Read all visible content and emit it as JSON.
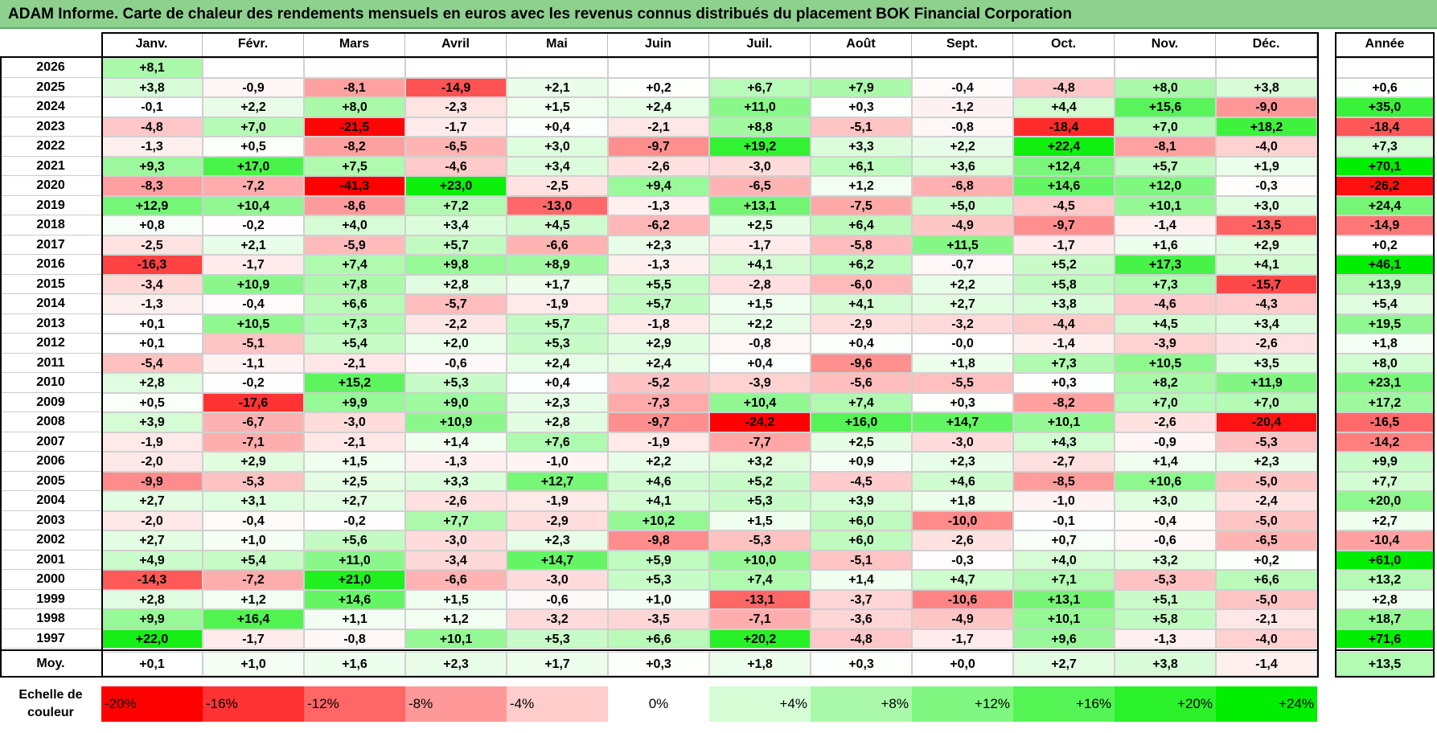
{
  "title": "ADAM Informe. Carte de chaleur des rendements mensuels en euros avec les revenus connus distribués du placement BOK Financial Corporation",
  "colors": {
    "title_bg": "#8ed08e",
    "neg_max": "#ff0000",
    "pos_max": "#00ee00",
    "neutral": "#ffffff"
  },
  "chart_data": {
    "type": "heatmap",
    "months": [
      "Janv.",
      "Févr.",
      "Mars",
      "Avril",
      "Mai",
      "Juin",
      "Juil.",
      "Août",
      "Sept.",
      "Oct.",
      "Nov.",
      "Déc."
    ],
    "year_header": "Année",
    "avg_label": "Moy.",
    "rows": [
      {
        "year": "2026",
        "months": [
          "+8,1",
          "",
          "",
          "",
          "",
          "",
          "",
          "",
          "",
          "",
          "",
          ""
        ],
        "annual": ""
      },
      {
        "year": "2025",
        "months": [
          "+3,8",
          "-0,9",
          "-8,1",
          "-14,9",
          "+2,1",
          "+0,2",
          "+6,7",
          "+7,9",
          "-0,4",
          "-4,8",
          "+8,0",
          "+3,8"
        ],
        "annual": "+0,6"
      },
      {
        "year": "2024",
        "months": [
          "-0,1",
          "+2,2",
          "+8,0",
          "-2,3",
          "+1,5",
          "+2,4",
          "+11,0",
          "+0,3",
          "-1,2",
          "+4,4",
          "+15,6",
          "-9,0"
        ],
        "annual": "+35,0"
      },
      {
        "year": "2023",
        "months": [
          "-4,8",
          "+7,0",
          "-21,5",
          "-1,7",
          "+0,4",
          "-2,1",
          "+8,8",
          "-5,1",
          "-0,8",
          "-18,4",
          "+7,0",
          "+18,2"
        ],
        "annual": "-18,4"
      },
      {
        "year": "2022",
        "months": [
          "-1,3",
          "+0,5",
          "-8,2",
          "-6,5",
          "+3,0",
          "-9,7",
          "+19,2",
          "+3,3",
          "+2,2",
          "+22,4",
          "-8,1",
          "-4,0"
        ],
        "annual": "+7,3"
      },
      {
        "year": "2021",
        "months": [
          "+9,3",
          "+17,0",
          "+7,5",
          "-4,6",
          "+3,4",
          "-2,6",
          "-3,0",
          "+6,1",
          "+3,6",
          "+12,4",
          "+5,7",
          "+1,9"
        ],
        "annual": "+70,1"
      },
      {
        "year": "2020",
        "months": [
          "-8,3",
          "-7,2",
          "-41,3",
          "+23,0",
          "-2,5",
          "+9,4",
          "-6,5",
          "+1,2",
          "-6,8",
          "+14,6",
          "+12,0",
          "-0,3"
        ],
        "annual": "-26,2"
      },
      {
        "year": "2019",
        "months": [
          "+12,9",
          "+10,4",
          "-8,6",
          "+7,2",
          "-13,0",
          "-1,3",
          "+13,1",
          "-7,5",
          "+5,0",
          "-4,5",
          "+10,1",
          "+3,0"
        ],
        "annual": "+24,4"
      },
      {
        "year": "2018",
        "months": [
          "+0,8",
          "-0,2",
          "+4,0",
          "+3,4",
          "+4,5",
          "-6,2",
          "+2,5",
          "+6,4",
          "-4,9",
          "-9,7",
          "-1,4",
          "-13,5"
        ],
        "annual": "-14,9"
      },
      {
        "year": "2017",
        "months": [
          "-2,5",
          "+2,1",
          "-5,9",
          "+5,7",
          "-6,6",
          "+2,3",
          "-1,7",
          "-5,8",
          "+11,5",
          "-1,7",
          "+1,6",
          "+2,9"
        ],
        "annual": "+0,2"
      },
      {
        "year": "2016",
        "months": [
          "-16,3",
          "-1,7",
          "+7,4",
          "+9,8",
          "+8,9",
          "-1,3",
          "+4,1",
          "+6,2",
          "-0,7",
          "+5,2",
          "+17,3",
          "+4,1"
        ],
        "annual": "+46,1"
      },
      {
        "year": "2015",
        "months": [
          "-3,4",
          "+10,9",
          "+7,8",
          "+2,8",
          "+1,7",
          "+5,5",
          "-2,8",
          "-6,0",
          "+2,2",
          "+5,8",
          "+7,3",
          "-15,7"
        ],
        "annual": "+13,9"
      },
      {
        "year": "2014",
        "months": [
          "-1,3",
          "-0,4",
          "+6,6",
          "-5,7",
          "-1,9",
          "+5,7",
          "+1,5",
          "+4,1",
          "+2,7",
          "+3,8",
          "-4,6",
          "-4,3"
        ],
        "annual": "+5,4"
      },
      {
        "year": "2013",
        "months": [
          "+0,1",
          "+10,5",
          "+7,3",
          "-2,2",
          "+5,7",
          "-1,8",
          "+2,2",
          "-2,9",
          "-3,2",
          "-4,4",
          "+4,5",
          "+3,4"
        ],
        "annual": "+19,5"
      },
      {
        "year": "2012",
        "months": [
          "+0,1",
          "-5,1",
          "+5,4",
          "+2,0",
          "+5,3",
          "+2,9",
          "-0,8",
          "+0,4",
          "-0,0",
          "-1,4",
          "-3,9",
          "-2,6"
        ],
        "annual": "+1,8"
      },
      {
        "year": "2011",
        "months": [
          "-5,4",
          "-1,1",
          "-2,1",
          "-0,6",
          "+2,4",
          "+2,4",
          "+0,4",
          "-9,6",
          "+1,8",
          "+7,3",
          "+10,5",
          "+3,5"
        ],
        "annual": "+8,0"
      },
      {
        "year": "2010",
        "months": [
          "+2,8",
          "-0,2",
          "+15,2",
          "+5,3",
          "+0,4",
          "-5,2",
          "-3,9",
          "-5,6",
          "-5,5",
          "+0,3",
          "+8,2",
          "+11,9"
        ],
        "annual": "+23,1"
      },
      {
        "year": "2009",
        "months": [
          "+0,5",
          "-17,6",
          "+9,9",
          "+9,0",
          "+2,3",
          "-7,3",
          "+10,4",
          "+7,4",
          "+0,3",
          "-8,2",
          "+7,0",
          "+7,0"
        ],
        "annual": "+17,2"
      },
      {
        "year": "2008",
        "months": [
          "+3,9",
          "-6,7",
          "-3,0",
          "+10,9",
          "+2,8",
          "-9,7",
          "-24,2",
          "+16,0",
          "+14,7",
          "+10,1",
          "-2,6",
          "-20,4"
        ],
        "annual": "-16,5"
      },
      {
        "year": "2007",
        "months": [
          "-1,9",
          "-7,1",
          "-2,1",
          "+1,4",
          "+7,6",
          "-1,9",
          "-7,7",
          "+2,5",
          "-3,0",
          "+4,3",
          "-0,9",
          "-5,3"
        ],
        "annual": "-14,2"
      },
      {
        "year": "2006",
        "months": [
          "-2,0",
          "+2,9",
          "+1,5",
          "-1,3",
          "-1,0",
          "+2,2",
          "+3,2",
          "+0,9",
          "+2,3",
          "-2,7",
          "+1,4",
          "+2,3"
        ],
        "annual": "+9,9"
      },
      {
        "year": "2005",
        "months": [
          "-9,9",
          "-5,3",
          "+2,5",
          "+3,3",
          "+12,7",
          "+4,6",
          "+5,2",
          "-4,5",
          "+4,6",
          "-8,5",
          "+10,6",
          "-5,0"
        ],
        "annual": "+7,7"
      },
      {
        "year": "2004",
        "months": [
          "+2,7",
          "+3,1",
          "+2,7",
          "-2,6",
          "-1,9",
          "+4,1",
          "+5,3",
          "+3,9",
          "+1,8",
          "-1,0",
          "+3,0",
          "-2,4"
        ],
        "annual": "+20,0"
      },
      {
        "year": "2003",
        "months": [
          "-2,0",
          "-0,4",
          "-0,2",
          "+7,7",
          "-2,9",
          "+10,2",
          "+1,5",
          "+6,0",
          "-10,0",
          "-0,1",
          "-0,4",
          "-5,0"
        ],
        "annual": "+2,7"
      },
      {
        "year": "2002",
        "months": [
          "+2,7",
          "+1,0",
          "+5,6",
          "-3,0",
          "+2,3",
          "-9,8",
          "-5,3",
          "+6,0",
          "-2,6",
          "+0,7",
          "-0,6",
          "-6,5"
        ],
        "annual": "-10,4"
      },
      {
        "year": "2001",
        "months": [
          "+4,9",
          "+5,4",
          "+11,0",
          "-3,4",
          "+14,7",
          "+5,9",
          "+10,0",
          "-5,1",
          "-0,3",
          "+4,0",
          "+3,2",
          "+0,2"
        ],
        "annual": "+61,0"
      },
      {
        "year": "2000",
        "months": [
          "-14,3",
          "-7,2",
          "+21,0",
          "-6,6",
          "-3,0",
          "+5,3",
          "+7,4",
          "+1,4",
          "+4,7",
          "+7,1",
          "-5,3",
          "+6,6"
        ],
        "annual": "+13,2"
      },
      {
        "year": "1999",
        "months": [
          "+2,8",
          "+1,2",
          "+14,6",
          "+1,5",
          "-0,6",
          "+1,0",
          "-13,1",
          "-3,7",
          "-10,6",
          "+13,1",
          "+5,1",
          "-5,0"
        ],
        "annual": "+2,8"
      },
      {
        "year": "1998",
        "months": [
          "+9,9",
          "+16,4",
          "+1,1",
          "+1,2",
          "-3,2",
          "-3,5",
          "-7,1",
          "-3,6",
          "-4,9",
          "+10,1",
          "+5,8",
          "-2,1"
        ],
        "annual": "+18,7"
      },
      {
        "year": "1997",
        "months": [
          "+22,0",
          "-1,7",
          "-0,8",
          "+10,1",
          "+5,3",
          "+6,6",
          "+20,2",
          "-4,8",
          "-1,7",
          "+9,6",
          "-1,3",
          "-4,0"
        ],
        "annual": "+71,6"
      }
    ],
    "average": {
      "months": [
        "+0,1",
        "+1,0",
        "+1,6",
        "+2,3",
        "+1,7",
        "+0,3",
        "+1,8",
        "+0,3",
        "+0,0",
        "+2,7",
        "+3,8",
        "-1,4"
      ],
      "annual": "+13,5"
    },
    "scale_label": "Echelle de couleur",
    "scale": [
      "-20%",
      "-16%",
      "-12%",
      "-8%",
      "-4%",
      "0%",
      "+4%",
      "+8%",
      "+12%",
      "+16%",
      "+20%",
      "+24%"
    ],
    "scale_values": [
      -20,
      -16,
      -12,
      -8,
      -4,
      0,
      4,
      8,
      12,
      16,
      20,
      24
    ]
  }
}
